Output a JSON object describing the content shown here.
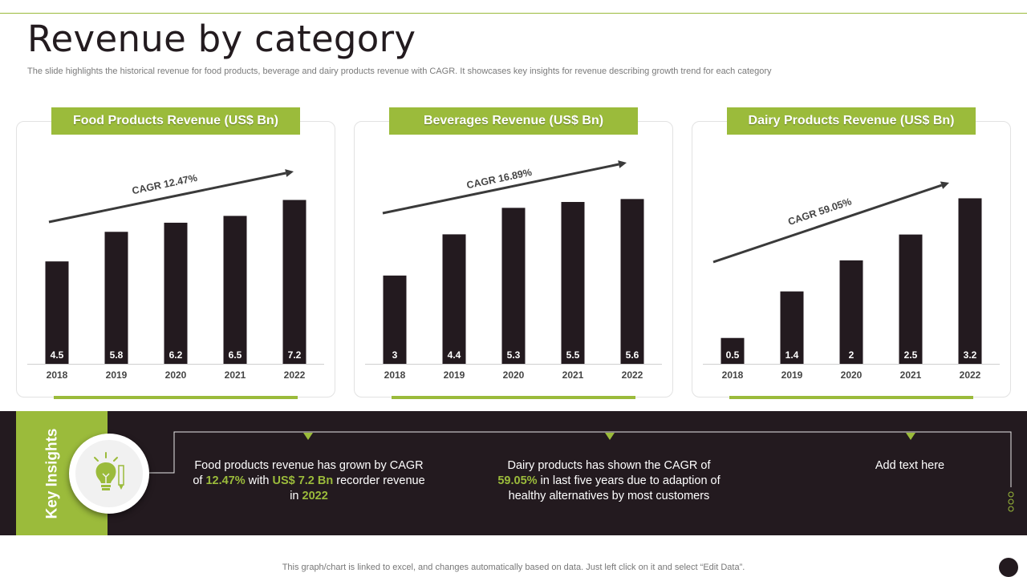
{
  "title": "Revenue by category",
  "subtitle": "The slide highlights the historical revenue for food products, beverage and dairy products revenue with CAGR.  It showcases key insights for revenue describing growth trend for each category",
  "colors": {
    "accent": "#9bbb3b",
    "dark": "#231a1f",
    "bar": "#231a1f"
  },
  "chart_data": [
    {
      "type": "bar",
      "title": "Food Products Revenue (US$ Bn)",
      "categories": [
        "2018",
        "2019",
        "2020",
        "2021",
        "2022"
      ],
      "values": [
        4.5,
        5.8,
        6.2,
        6.5,
        7.2
      ],
      "value_labels": [
        "4.5",
        "5.8",
        "6.2",
        "6.5",
        "7.2"
      ],
      "annotation": "CAGR 12.47%",
      "ylim": [
        0,
        7.5
      ],
      "xlabel": "",
      "ylabel": ""
    },
    {
      "type": "bar",
      "title": "Beverages Revenue (US$ Bn)",
      "categories": [
        "2018",
        "2019",
        "2020",
        "2021",
        "2022"
      ],
      "values": [
        3,
        4.4,
        5.3,
        5.5,
        5.6
      ],
      "value_labels": [
        "3",
        "4.4",
        "5.3",
        "5.5",
        "5.6"
      ],
      "annotation": "CAGR 16.89%",
      "ylim": [
        0,
        5.8
      ],
      "xlabel": "",
      "ylabel": ""
    },
    {
      "type": "bar",
      "title": "Dairy Products Revenue (US$ Bn)",
      "categories": [
        "2018",
        "2019",
        "2020",
        "2021",
        "2022"
      ],
      "values": [
        0.5,
        1.4,
        2,
        2.5,
        3.2
      ],
      "value_labels": [
        "0.5",
        "1.4",
        "2",
        "2.5",
        "3.2"
      ],
      "annotation": "CAGR 59.05%",
      "ylim": [
        0,
        3.3
      ],
      "xlabel": "",
      "ylabel": ""
    }
  ],
  "insights": {
    "label": "Key Insights",
    "items": [
      {
        "p1": "Food products revenue has grown by CAGR of ",
        "h1": "12.47%",
        "p2": " with ",
        "h2": "US$ 7.2 Bn",
        "p3": " recorder revenue in ",
        "h3": "2022"
      },
      {
        "p1": "Dairy products has shown the CAGR of ",
        "h1": "59.05%",
        "p2": " in last five years due to adaption of healthy alternatives by most customers"
      },
      {
        "text": "Add text here"
      }
    ]
  },
  "footer": "This graph/chart is linked to excel, and changes automatically based on data. Just left click on it and select “Edit Data”."
}
